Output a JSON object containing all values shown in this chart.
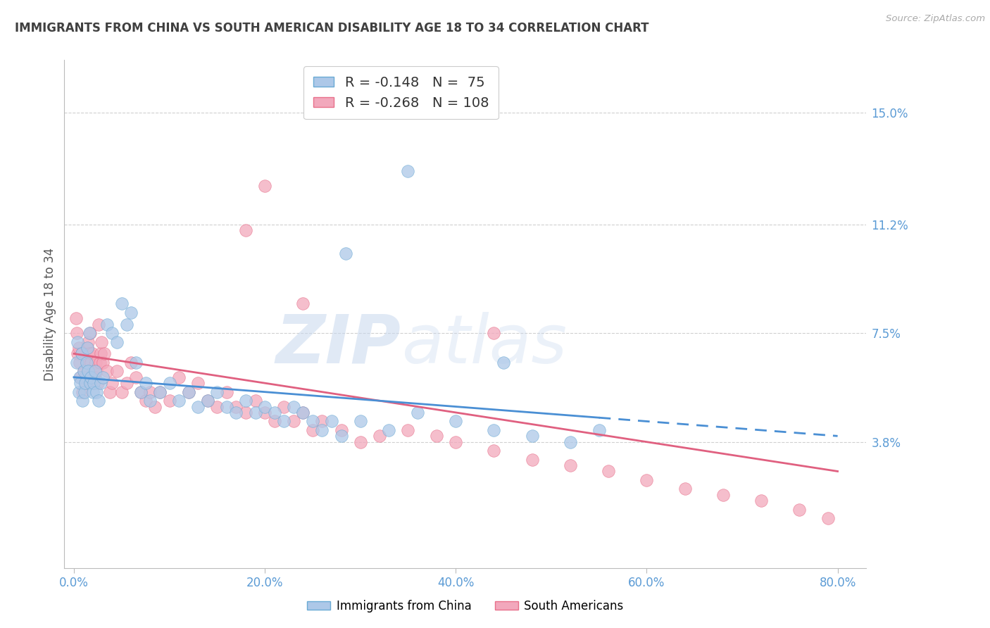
{
  "title": "IMMIGRANTS FROM CHINA VS SOUTH AMERICAN DISABILITY AGE 18 TO 34 CORRELATION CHART",
  "source": "Source: ZipAtlas.com",
  "xlabel_ticks": [
    "0.0%",
    "20.0%",
    "40.0%",
    "60.0%",
    "80.0%"
  ],
  "xlabel_vals": [
    0.0,
    20.0,
    40.0,
    60.0,
    80.0
  ],
  "ylabel_ticks": [
    "3.8%",
    "7.5%",
    "11.2%",
    "15.0%"
  ],
  "ylabel_vals": [
    3.8,
    7.5,
    11.2,
    15.0
  ],
  "xlim": [
    -1.0,
    83.0
  ],
  "ylim": [
    -0.5,
    16.8
  ],
  "watermark_zip": "ZIP",
  "watermark_atlas": "atlas",
  "legend_china_r": "-0.148",
  "legend_china_n": "75",
  "legend_sa_r": "-0.268",
  "legend_sa_n": "108",
  "china_color": "#adc8e8",
  "sa_color": "#f2a8bc",
  "china_edge_color": "#6aaad4",
  "sa_edge_color": "#e8708a",
  "china_line_color": "#4a8fd4",
  "sa_line_color": "#e06080",
  "axis_color": "#5b9bd5",
  "grid_color": "#d0d0d0",
  "title_color": "#404040",
  "background_color": "#ffffff",
  "china_scatter_x": [
    0.3,
    0.4,
    0.5,
    0.6,
    0.7,
    0.8,
    0.9,
    1.0,
    1.1,
    1.2,
    1.3,
    1.4,
    1.5,
    1.6,
    1.7,
    1.8,
    2.0,
    2.1,
    2.2,
    2.4,
    2.6,
    2.8,
    3.0,
    3.5,
    4.0,
    4.5,
    5.0,
    5.5,
    6.0,
    6.5,
    7.0,
    7.5,
    8.0,
    9.0,
    10.0,
    11.0,
    12.0,
    13.0,
    14.0,
    15.0,
    16.0,
    17.0,
    18.0,
    19.0,
    20.0,
    21.0,
    22.0,
    23.0,
    24.0,
    25.0,
    26.0,
    27.0,
    28.0,
    30.0,
    33.0,
    36.0,
    40.0,
    44.0,
    48.0,
    52.0,
    55.0,
    35.0,
    28.5,
    45.0
  ],
  "china_scatter_y": [
    6.5,
    7.2,
    5.5,
    6.0,
    5.8,
    6.8,
    5.2,
    6.2,
    5.5,
    5.8,
    6.5,
    7.0,
    6.2,
    7.5,
    5.8,
    6.0,
    5.5,
    5.8,
    6.2,
    5.5,
    5.2,
    5.8,
    6.0,
    7.8,
    7.5,
    7.2,
    8.5,
    7.8,
    8.2,
    6.5,
    5.5,
    5.8,
    5.2,
    5.5,
    5.8,
    5.2,
    5.5,
    5.0,
    5.2,
    5.5,
    5.0,
    4.8,
    5.2,
    4.8,
    5.0,
    4.8,
    4.5,
    5.0,
    4.8,
    4.5,
    4.2,
    4.5,
    4.0,
    4.5,
    4.2,
    4.8,
    4.5,
    4.2,
    4.0,
    3.8,
    4.2,
    13.0,
    10.2,
    6.5
  ],
  "sa_scatter_x": [
    0.2,
    0.3,
    0.4,
    0.5,
    0.6,
    0.7,
    0.8,
    0.9,
    1.0,
    1.1,
    1.2,
    1.3,
    1.4,
    1.5,
    1.6,
    1.7,
    1.8,
    1.9,
    2.0,
    2.1,
    2.2,
    2.3,
    2.4,
    2.5,
    2.6,
    2.7,
    2.8,
    2.9,
    3.0,
    3.2,
    3.5,
    3.8,
    4.0,
    4.5,
    5.0,
    5.5,
    6.0,
    6.5,
    7.0,
    7.5,
    8.0,
    8.5,
    9.0,
    10.0,
    11.0,
    12.0,
    13.0,
    14.0,
    15.0,
    16.0,
    17.0,
    18.0,
    19.0,
    20.0,
    21.0,
    22.0,
    23.0,
    24.0,
    25.0,
    26.0,
    28.0,
    30.0,
    32.0,
    35.0,
    38.0,
    40.0,
    44.0,
    48.0,
    52.0,
    56.0,
    60.0,
    64.0,
    68.0,
    72.0,
    76.0,
    79.0,
    20.0,
    24.0,
    18.0,
    44.0
  ],
  "sa_scatter_y": [
    8.0,
    7.5,
    6.8,
    7.0,
    6.5,
    6.0,
    6.8,
    5.5,
    6.2,
    6.0,
    5.8,
    6.5,
    7.0,
    7.2,
    6.8,
    7.5,
    6.5,
    6.8,
    6.2,
    5.8,
    6.0,
    6.5,
    6.2,
    5.8,
    7.8,
    6.5,
    6.8,
    7.2,
    6.5,
    6.8,
    6.2,
    5.5,
    5.8,
    6.2,
    5.5,
    5.8,
    6.5,
    6.0,
    5.5,
    5.2,
    5.5,
    5.0,
    5.5,
    5.2,
    6.0,
    5.5,
    5.8,
    5.2,
    5.0,
    5.5,
    5.0,
    4.8,
    5.2,
    4.8,
    4.5,
    5.0,
    4.5,
    4.8,
    4.2,
    4.5,
    4.2,
    3.8,
    4.0,
    4.2,
    4.0,
    3.8,
    3.5,
    3.2,
    3.0,
    2.8,
    2.5,
    2.2,
    2.0,
    1.8,
    1.5,
    1.2,
    12.5,
    8.5,
    11.0,
    7.5
  ]
}
